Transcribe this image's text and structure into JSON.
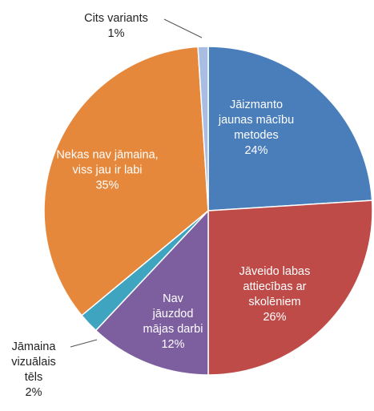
{
  "chart_data": {
    "type": "pie",
    "categories": [
      "Jāizmanto jaunas mācību metodes",
      "Jāveido labas attiecības ar skolēniem",
      "Nav jāuzdod mājas darbi",
      "Jāmaina vizuālais tēls",
      "Nekas nav jāmaina, viss jau ir labi",
      "Cits variants"
    ],
    "values": [
      24,
      26,
      12,
      2,
      35,
      1
    ],
    "value_labels": [
      "24%",
      "26%",
      "12%",
      "2%",
      "35%",
      "1%"
    ],
    "colors": [
      "#4a7ebb",
      "#be4b48",
      "#7d5fa0",
      "#3ea4bf",
      "#e5883c",
      "#a7bde2"
    ]
  }
}
